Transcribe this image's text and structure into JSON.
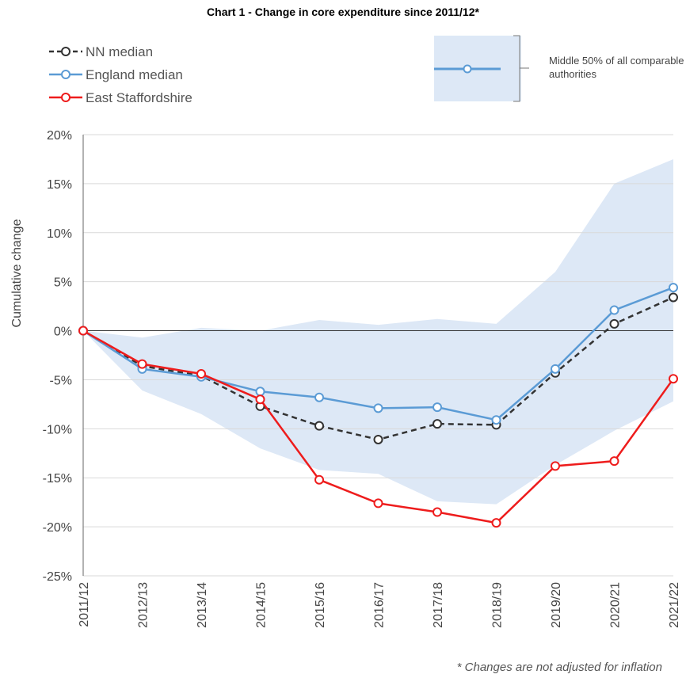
{
  "chart_data": {
    "type": "line",
    "title": "Chart 1 - Change in core expenditure since 2011/12*",
    "y_label": "Cumulative change",
    "footnote": "* Changes are not adjusted for inflation",
    "categories": [
      "2011/12",
      "2012/13",
      "2013/14",
      "2014/15",
      "2015/16",
      "2016/17",
      "2017/18",
      "2018/19",
      "2019/20",
      "2020/21",
      "2021/22"
    ],
    "series": [
      {
        "name": "NN median",
        "color": "#333333",
        "dashed": true,
        "values": [
          0,
          -3.6,
          -4.6,
          -7.7,
          -9.7,
          -11.1,
          -9.5,
          -9.6,
          -4.3,
          0.7,
          3.4
        ]
      },
      {
        "name": "England median",
        "color": "#5b9bd5",
        "dashed": false,
        "values": [
          0,
          -3.9,
          -4.7,
          -6.2,
          -6.8,
          -7.9,
          -7.8,
          -9.1,
          -3.9,
          2.1,
          4.4
        ]
      },
      {
        "name": "East Staffordshire",
        "color": "#ee1c1c",
        "dashed": false,
        "values": [
          0,
          -3.4,
          -4.4,
          -7.0,
          -15.2,
          -17.6,
          -18.5,
          -19.6,
          -13.8,
          -13.3,
          -4.9
        ]
      }
    ],
    "band": {
      "name": "Middle 50% of all comparable authorities",
      "color": "#dde8f6",
      "upper": [
        0,
        -0.7,
        0.3,
        0,
        1.1,
        0.6,
        1.2,
        0.7,
        6.0,
        15.0,
        17.5
      ],
      "lower": [
        0,
        -6.1,
        -8.5,
        -12.0,
        -14.2,
        -14.6,
        -17.4,
        -17.7,
        -13.7,
        -10.2,
        -7.2
      ]
    },
    "ylim": [
      -25,
      20
    ],
    "yticks": [
      {
        "value": -25,
        "label": "-25%"
      },
      {
        "value": -20,
        "label": "-20%"
      },
      {
        "value": -15,
        "label": "-15%"
      },
      {
        "value": -10,
        "label": "-10%"
      },
      {
        "value": -5,
        "label": "-5%"
      },
      {
        "value": 0,
        "label": "0%"
      },
      {
        "value": 5,
        "label": "5%"
      },
      {
        "value": 10,
        "label": "10%"
      },
      {
        "value": 15,
        "label": "15%"
      },
      {
        "value": 20,
        "label": "20%"
      }
    ],
    "grid": true
  }
}
